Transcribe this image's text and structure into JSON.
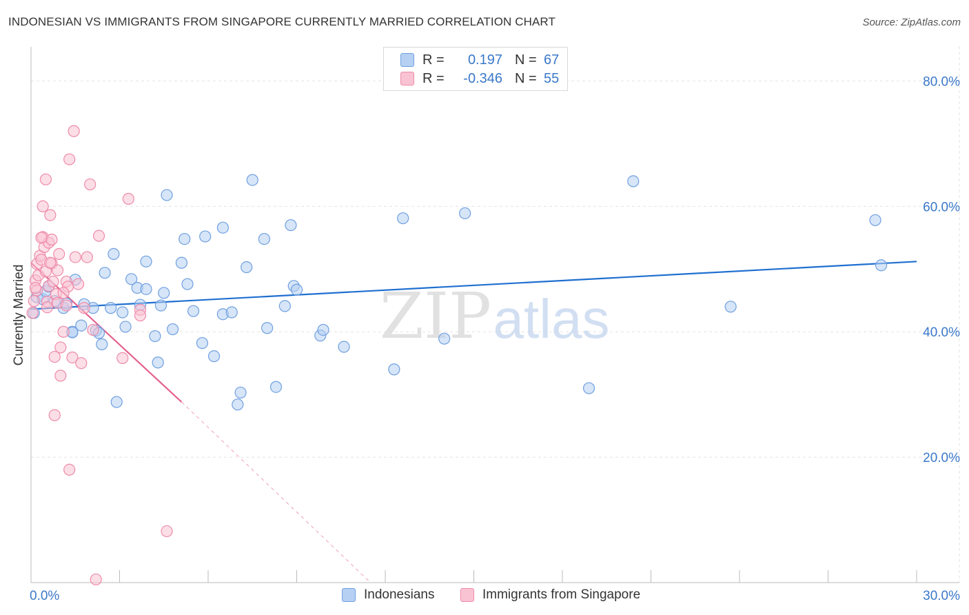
{
  "title": "INDONESIAN VS IMMIGRANTS FROM SINGAPORE CURRENTLY MARRIED CORRELATION CHART",
  "source": "Source: ZipAtlas.com",
  "watermark": {
    "zip": "ZIP",
    "atlas": "atlas"
  },
  "colors": {
    "blue_fill": "#b5d0f3",
    "blue_stroke": "#6f9fe0",
    "blue_line": "#1f6fd0",
    "pink_fill": "#f9c3d3",
    "pink_stroke": "#ee8aa8",
    "pink_line": "#e5608e",
    "axis_text": "#3a78c9",
    "grid": "#e2e2e2"
  },
  "legend": {
    "rows": [
      {
        "r_label": "R =",
        "r_value": "0.197",
        "n_label": "N =",
        "n_value": "67"
      },
      {
        "r_label": "R =",
        "r_value": "-0.346",
        "n_label": "N =",
        "n_value": "55"
      }
    ]
  },
  "bottom_legend": {
    "series1": "Indonesians",
    "series2": "Immigrants from Singapore"
  },
  "chart_data": {
    "type": "scatter",
    "title": "INDONESIAN VS IMMIGRANTS FROM SINGAPORE CURRENTLY MARRIED CORRELATION CHART",
    "xlabel": "",
    "ylabel": "Currently Married",
    "xlim": [
      0,
      30
    ],
    "ylim": [
      0,
      84
    ],
    "x_tick_labels": [
      "0.0%",
      "30.0%"
    ],
    "y_ticks": [
      20,
      40,
      60,
      80
    ],
    "y_tick_labels": [
      "20.0%",
      "40.0%",
      "60.0%",
      "80.0%"
    ],
    "grid": true,
    "series": [
      {
        "name": "Indonesians",
        "R": 0.197,
        "N": 67,
        "trend": {
          "x": [
            0,
            30
          ],
          "y": [
            43.6,
            51.2
          ],
          "dashed_extension": false
        },
        "points": [
          [
            0.1,
            43.0
          ],
          [
            0.2,
            45.5
          ],
          [
            0.4,
            45.2
          ],
          [
            0.5,
            46.5
          ],
          [
            0.6,
            47.2
          ],
          [
            0.8,
            44.9
          ],
          [
            1.1,
            43.8
          ],
          [
            1.2,
            44.5
          ],
          [
            1.5,
            48.3
          ],
          [
            1.4,
            40.0
          ],
          [
            1.4,
            39.9
          ],
          [
            1.7,
            41.0
          ],
          [
            1.8,
            44.4
          ],
          [
            2.1,
            43.8
          ],
          [
            2.2,
            40.2
          ],
          [
            2.3,
            39.8
          ],
          [
            2.4,
            38.0
          ],
          [
            2.5,
            49.4
          ],
          [
            2.7,
            43.8
          ],
          [
            2.8,
            52.4
          ],
          [
            2.9,
            28.8
          ],
          [
            3.1,
            43.1
          ],
          [
            3.2,
            40.8
          ],
          [
            3.4,
            48.4
          ],
          [
            3.6,
            47.0
          ],
          [
            3.7,
            44.3
          ],
          [
            3.9,
            46.8
          ],
          [
            3.9,
            51.2
          ],
          [
            4.2,
            39.3
          ],
          [
            4.3,
            35.1
          ],
          [
            4.4,
            44.2
          ],
          [
            4.5,
            46.2
          ],
          [
            4.6,
            61.8
          ],
          [
            4.8,
            40.4
          ],
          [
            5.1,
            51.0
          ],
          [
            5.2,
            54.8
          ],
          [
            5.3,
            47.6
          ],
          [
            5.5,
            43.3
          ],
          [
            5.8,
            38.2
          ],
          [
            5.9,
            55.2
          ],
          [
            6.2,
            36.1
          ],
          [
            6.5,
            56.6
          ],
          [
            6.5,
            42.8
          ],
          [
            6.8,
            43.1
          ],
          [
            7.0,
            28.4
          ],
          [
            7.1,
            30.3
          ],
          [
            7.3,
            50.3
          ],
          [
            7.5,
            64.2
          ],
          [
            7.9,
            54.8
          ],
          [
            8.0,
            40.6
          ],
          [
            8.3,
            31.2
          ],
          [
            8.6,
            44.1
          ],
          [
            8.8,
            57.0
          ],
          [
            8.9,
            47.3
          ],
          [
            9.0,
            46.7
          ],
          [
            9.8,
            39.4
          ],
          [
            9.9,
            40.3
          ],
          [
            10.6,
            37.6
          ],
          [
            12.3,
            34.0
          ],
          [
            12.6,
            58.1
          ],
          [
            14.0,
            38.9
          ],
          [
            14.7,
            58.9
          ],
          [
            18.9,
            31.0
          ],
          [
            20.4,
            64.0
          ],
          [
            23.7,
            44.0
          ],
          [
            28.6,
            57.8
          ],
          [
            28.8,
            50.6
          ]
        ]
      },
      {
        "name": "Immigrants from Singapore",
        "R": -0.346,
        "N": 55,
        "trend": {
          "x": [
            0,
            5.1
          ],
          "y": [
            51.0,
            28.8
          ],
          "dashed_extension_to": [
            11.5,
            0
          ]
        },
        "points": [
          [
            0.05,
            43.0
          ],
          [
            0.1,
            44.9
          ],
          [
            0.15,
            48.2
          ],
          [
            0.2,
            50.8
          ],
          [
            0.2,
            46.6
          ],
          [
            0.25,
            49.0
          ],
          [
            0.3,
            52.1
          ],
          [
            0.35,
            51.5
          ],
          [
            0.4,
            55.1
          ],
          [
            0.4,
            60.0
          ],
          [
            0.45,
            53.5
          ],
          [
            0.5,
            64.3
          ],
          [
            0.5,
            49.6
          ],
          [
            0.55,
            44.8
          ],
          [
            0.6,
            47.3
          ],
          [
            0.6,
            54.2
          ],
          [
            0.65,
            58.6
          ],
          [
            0.7,
            54.7
          ],
          [
            0.7,
            50.9
          ],
          [
            0.75,
            48.0
          ],
          [
            0.8,
            36.0
          ],
          [
            0.8,
            26.7
          ],
          [
            0.85,
            46.0
          ],
          [
            0.9,
            49.8
          ],
          [
            0.9,
            44.6
          ],
          [
            0.95,
            52.4
          ],
          [
            1.0,
            37.5
          ],
          [
            1.0,
            33.0
          ],
          [
            1.1,
            40.0
          ],
          [
            1.2,
            48.0
          ],
          [
            1.2,
            44.2
          ],
          [
            1.25,
            47.2
          ],
          [
            1.3,
            18.0
          ],
          [
            1.3,
            67.5
          ],
          [
            1.4,
            35.9
          ],
          [
            1.45,
            72.0
          ],
          [
            1.5,
            51.9
          ],
          [
            1.6,
            47.6
          ],
          [
            1.7,
            35.0
          ],
          [
            1.8,
            43.8
          ],
          [
            1.9,
            51.9
          ],
          [
            2.0,
            63.5
          ],
          [
            2.1,
            40.3
          ],
          [
            2.3,
            55.3
          ],
          [
            2.2,
            0.5
          ],
          [
            3.1,
            35.8
          ],
          [
            3.3,
            61.2
          ],
          [
            3.7,
            43.5
          ],
          [
            3.7,
            42.6
          ],
          [
            4.6,
            8.2
          ],
          [
            0.35,
            55.0
          ],
          [
            0.55,
            43.9
          ],
          [
            1.1,
            46.2
          ],
          [
            0.15,
            47.0
          ],
          [
            0.65,
            51.0
          ]
        ]
      }
    ]
  }
}
